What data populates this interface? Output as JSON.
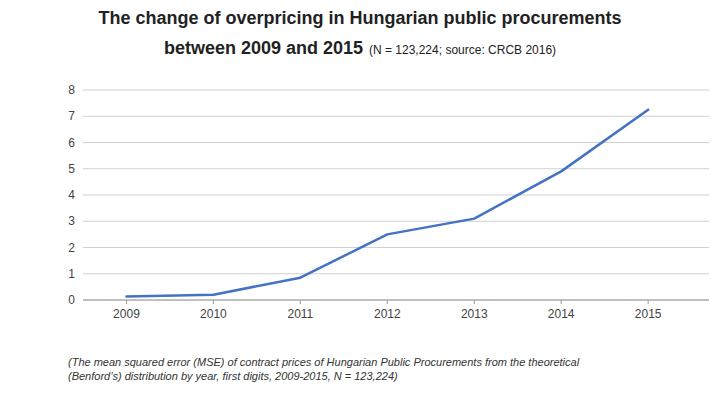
{
  "chart_data": {
    "type": "line",
    "title": "The change of overpricing in Hungarian public procurements",
    "subtitle": "between 2009 and 2015",
    "annotations": [
      "(N = 123,224; source: CRCB 2016)",
      "(The mean squared error (MSE) of contract prices of Hungarian Public Procurements from the theoretical\n(Benford’s) distribution by year, first digits, 2009-2015, N = 123,224)"
    ],
    "x": [
      2009,
      2010,
      2011,
      2012,
      2013,
      2014,
      2015
    ],
    "values": [
      0.13,
      0.2,
      0.85,
      2.5,
      3.1,
      4.9,
      7.25
    ],
    "color": "#4472C4",
    "xlim": [
      2008.5,
      2015.7
    ],
    "ylim": [
      0,
      8
    ],
    "xticks": [
      2009,
      2010,
      2011,
      2012,
      2013,
      2014,
      2015
    ],
    "yticks": [
      0,
      1,
      2,
      3,
      4,
      5,
      6,
      7,
      8
    ],
    "grid": true
  }
}
